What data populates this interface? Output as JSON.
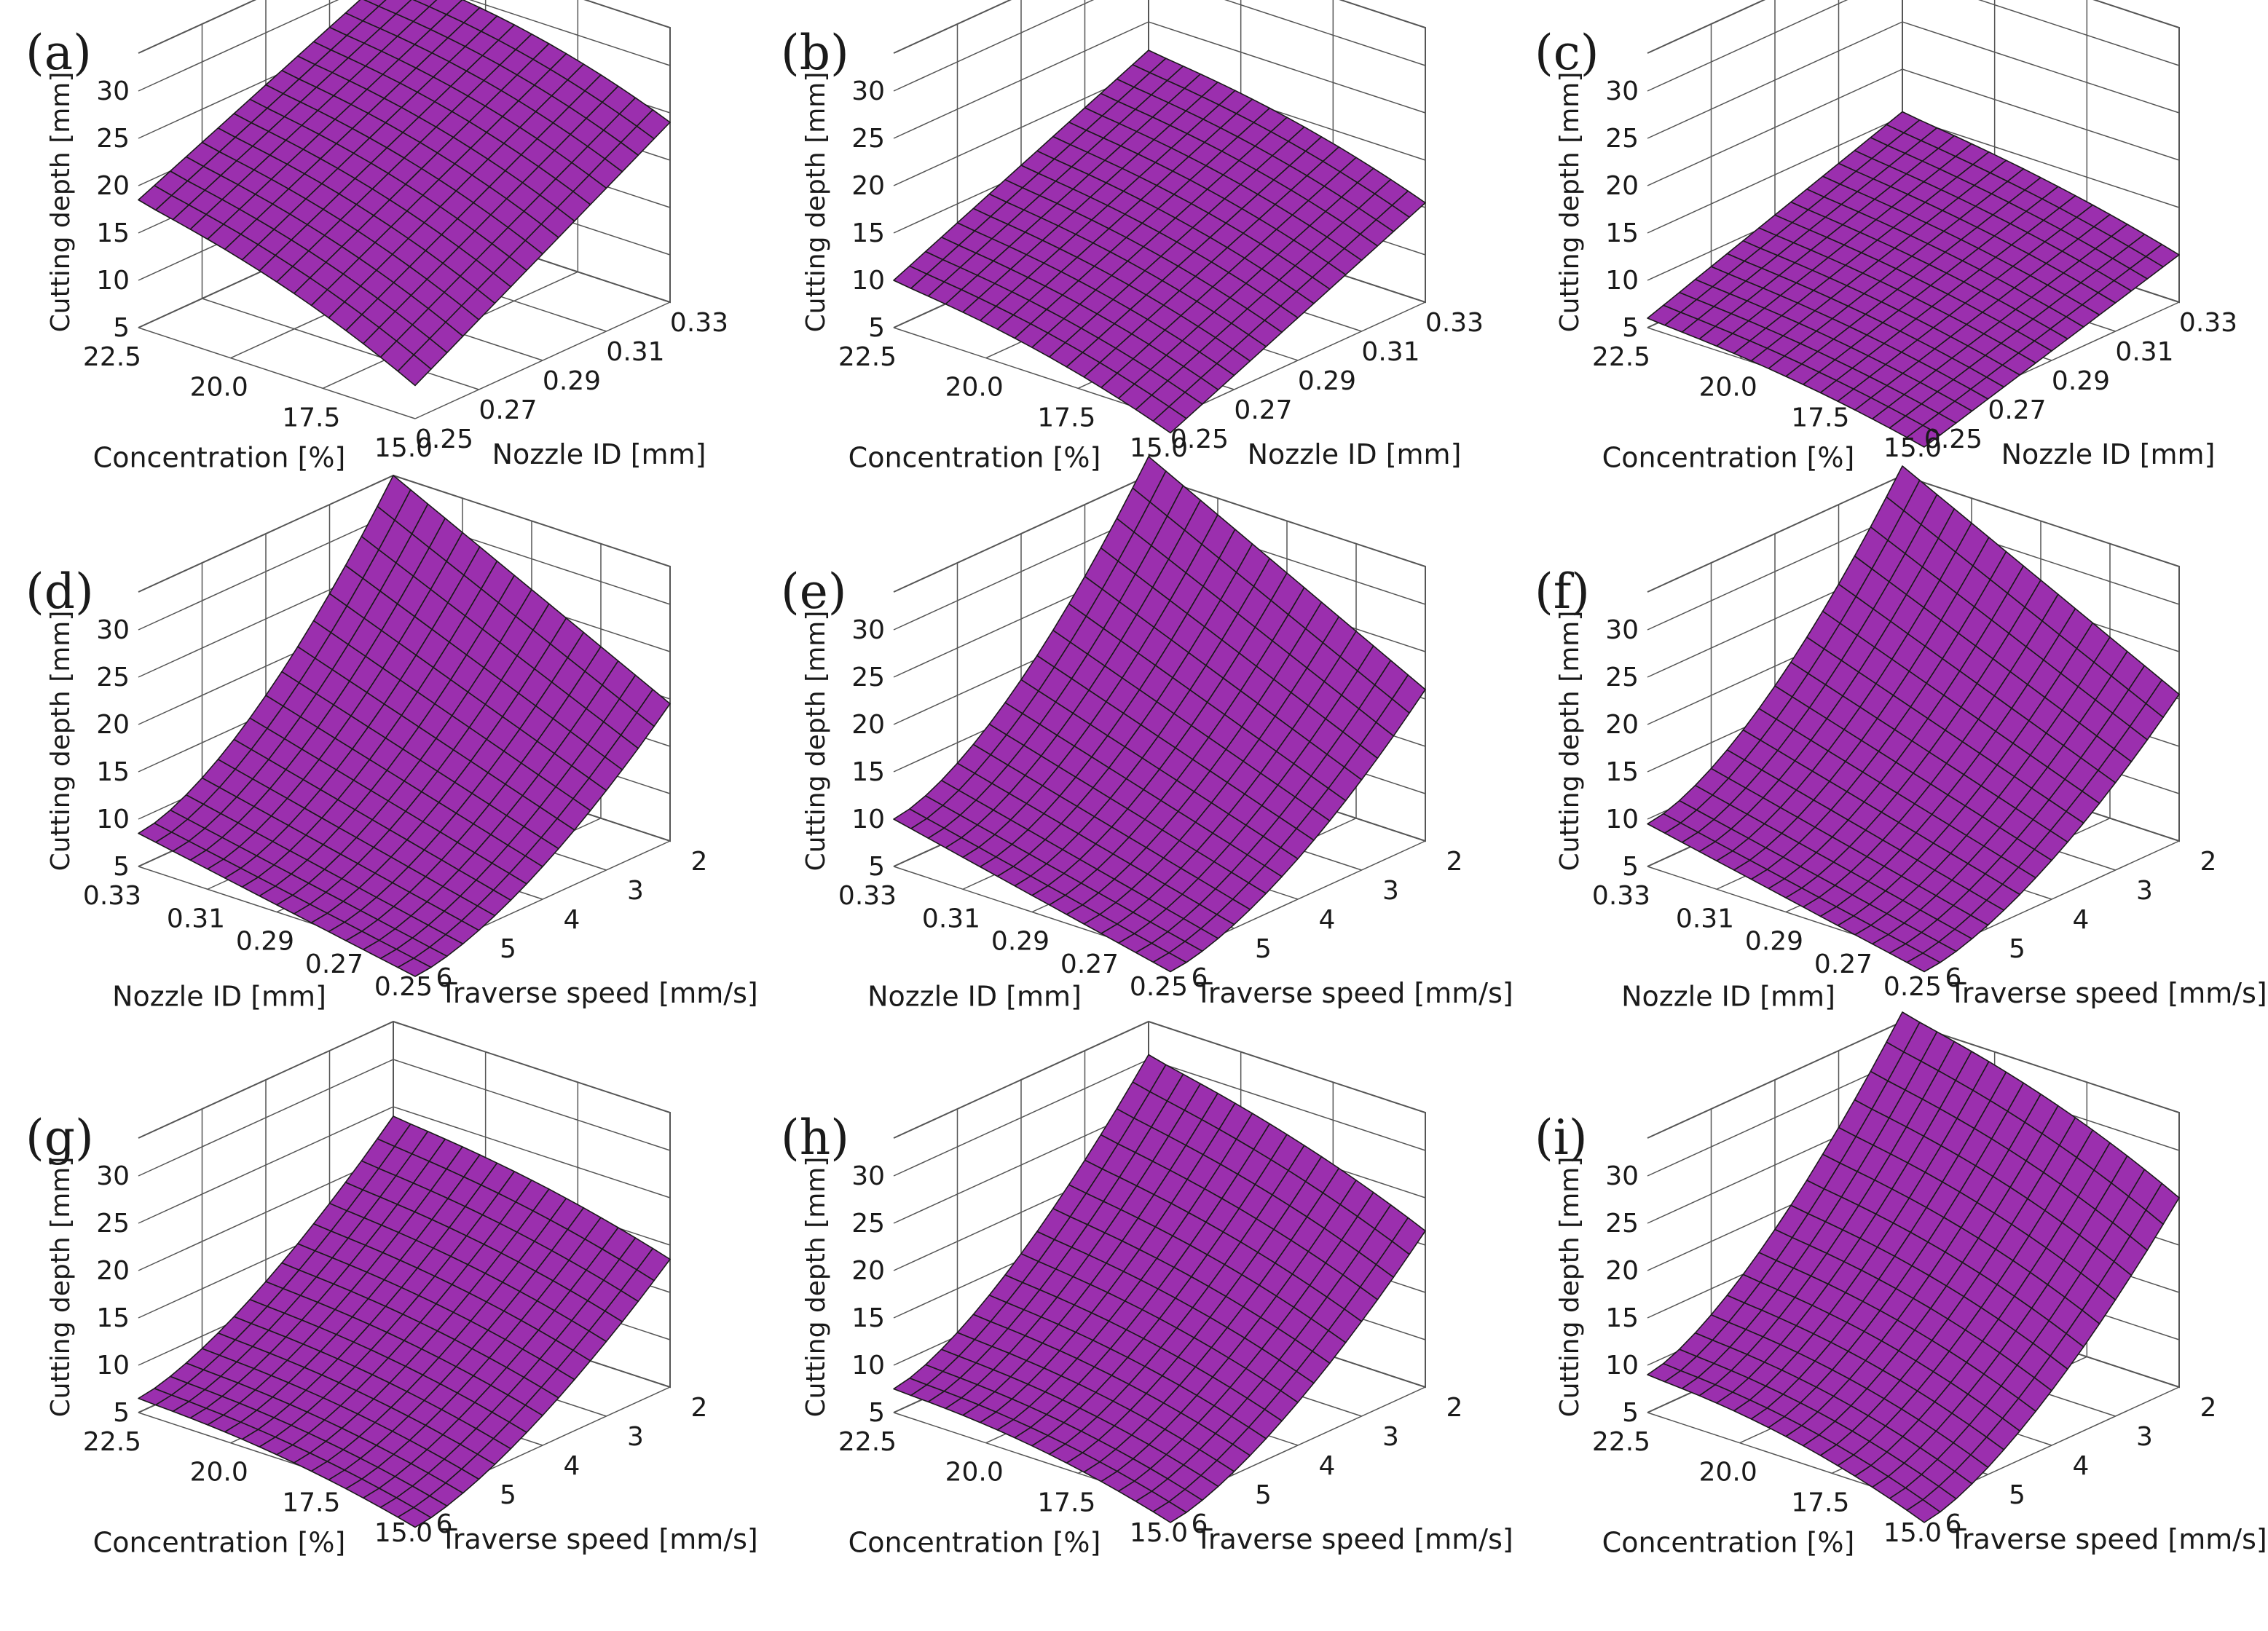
{
  "figure": {
    "surface_color": "#9B2FAE",
    "mesh_color": "#1a1a1a",
    "grid_color": "#555555"
  },
  "chart_data": [
    {
      "panel": "(a)",
      "type": "surface3d",
      "x_label": "Concentration  [%]",
      "x_ticks": [
        "22.5",
        "20.0",
        "17.5",
        "15.0"
      ],
      "x_range": [
        22.5,
        15.0
      ],
      "y_label": "Nozzle ID  [mm]",
      "y_ticks": [
        "0.25",
        "0.27",
        "0.29",
        "0.31",
        "0.33"
      ],
      "y_range": [
        0.25,
        0.33
      ],
      "z_label": "Cutting depth  [mm]",
      "z_ticks": [
        "5",
        "10",
        "15",
        "20",
        "25",
        "30"
      ],
      "z_range": [
        5,
        30
      ],
      "corner_values": {
        "x0y0": 18.5,
        "x1y0": 8.5,
        "x0y1": 30.5,
        "x1y1": 24
      },
      "curvature": 1.5,
      "x_power": 0.9,
      "y_power": 1.0
    },
    {
      "panel": "(b)",
      "type": "surface3d",
      "x_label": "Concentration  [%]",
      "x_ticks": [
        "22.5",
        "20.0",
        "17.5",
        "15.0"
      ],
      "x_range": [
        22.5,
        15.0
      ],
      "y_label": "Nozzle ID  [mm]",
      "y_ticks": [
        "0.25",
        "0.27",
        "0.29",
        "0.31",
        "0.33"
      ],
      "y_range": [
        0.25,
        0.33
      ],
      "z_label": "Cutting depth  [mm]",
      "z_ticks": [
        "5",
        "10",
        "15",
        "20",
        "25",
        "30"
      ],
      "z_range": [
        5,
        30
      ],
      "corner_values": {
        "x0y0": 10,
        "x1y0": 3.5,
        "x0y1": 22,
        "x1y1": 15.5
      },
      "curvature": 1.2,
      "x_power": 0.9,
      "y_power": 1.0
    },
    {
      "panel": "(c)",
      "type": "surface3d",
      "x_label": "Concentration  [%]",
      "x_ticks": [
        "22.5",
        "20.0",
        "17.5",
        "15.0"
      ],
      "x_range": [
        22.5,
        15.0
      ],
      "y_label": "Nozzle ID  [mm]",
      "y_ticks": [
        "0.25",
        "0.27",
        "0.29",
        "0.31",
        "0.33"
      ],
      "y_range": [
        0.25,
        0.33
      ],
      "z_label": "Cutting depth  [mm]",
      "z_ticks": [
        "5",
        "10",
        "15",
        "20",
        "25",
        "30"
      ],
      "z_range": [
        5,
        30
      ],
      "corner_values": {
        "x0y0": 6,
        "x1y0": 2,
        "x0y1": 15.5,
        "x1y1": 10
      },
      "curvature": 0.8,
      "x_power": 0.9,
      "y_power": 1.0
    },
    {
      "panel": "(d)",
      "type": "surface3d",
      "x_label": "Nozzle ID  [mm]",
      "x_ticks": [
        "0.33",
        "0.31",
        "0.29",
        "0.27",
        "0.25"
      ],
      "x_range": [
        0.33,
        0.25
      ],
      "y_label": "Traverse speed  [mm/s]",
      "y_ticks": [
        "6",
        "5",
        "4",
        "3",
        "2"
      ],
      "y_range": [
        6,
        2
      ],
      "z_label": "Cutting depth  [mm]",
      "z_ticks": [
        "5",
        "10",
        "15",
        "20",
        "25",
        "30"
      ],
      "z_range": [
        5,
        30
      ],
      "corner_values": {
        "x0y0": 8.5,
        "x1y0": 3,
        "x0y1": 34,
        "x1y1": 19.5
      },
      "curvature": 0,
      "x_power": 1.0,
      "y_power": 1.6
    },
    {
      "panel": "(e)",
      "type": "surface3d",
      "x_label": "Nozzle ID  [mm]",
      "x_ticks": [
        "0.33",
        "0.31",
        "0.29",
        "0.27",
        "0.25"
      ],
      "x_range": [
        0.33,
        0.25
      ],
      "y_label": "Traverse speed  [mm/s]",
      "y_ticks": [
        "6",
        "5",
        "4",
        "3",
        "2"
      ],
      "y_range": [
        6,
        2
      ],
      "z_label": "Cutting depth  [mm]",
      "z_ticks": [
        "5",
        "10",
        "15",
        "20",
        "25",
        "30"
      ],
      "z_range": [
        5,
        30
      ],
      "corner_values": {
        "x0y0": 10,
        "x1y0": 3.5,
        "x0y1": 36,
        "x1y1": 21
      },
      "curvature": 0,
      "x_power": 1.0,
      "y_power": 1.6
    },
    {
      "panel": "(f)",
      "type": "surface3d",
      "x_label": "Nozzle ID  [mm]",
      "x_ticks": [
        "0.33",
        "0.31",
        "0.29",
        "0.27",
        "0.25"
      ],
      "x_range": [
        0.33,
        0.25
      ],
      "y_label": "Traverse speed  [mm/s]",
      "y_ticks": [
        "6",
        "5",
        "4",
        "3",
        "2"
      ],
      "y_range": [
        6,
        2
      ],
      "z_label": "Cutting depth  [mm]",
      "z_ticks": [
        "5",
        "10",
        "15",
        "20",
        "25",
        "30"
      ],
      "z_range": [
        5,
        30
      ],
      "corner_values": {
        "x0y0": 9.5,
        "x1y0": 3.5,
        "x0y1": 35,
        "x1y1": 20.5
      },
      "curvature": 0,
      "x_power": 1.0,
      "y_power": 1.6
    },
    {
      "panel": "(g)",
      "type": "surface3d",
      "x_label": "Concentration  [%]",
      "x_ticks": [
        "22.5",
        "20.0",
        "17.5",
        "15.0"
      ],
      "x_range": [
        22.5,
        15.0
      ],
      "y_label": "Traverse speed  [mm/s]",
      "y_ticks": [
        "6",
        "5",
        "4",
        "3",
        "2"
      ],
      "y_range": [
        6,
        2
      ],
      "z_label": "Cutting depth  [mm]",
      "z_ticks": [
        "5",
        "10",
        "15",
        "20",
        "25",
        "30"
      ],
      "z_range": [
        5,
        30
      ],
      "corner_values": {
        "x0y0": 6.5,
        "x1y0": 2.5,
        "x0y1": 24,
        "x1y1": 18.5
      },
      "curvature": 1.0,
      "x_power": 0.9,
      "y_power": 1.5
    },
    {
      "panel": "(h)",
      "type": "surface3d",
      "x_label": "Concentration  [%]",
      "x_ticks": [
        "22.5",
        "20.0",
        "17.5",
        "15.0"
      ],
      "x_range": [
        22.5,
        15.0
      ],
      "y_label": "Traverse speed  [mm/s]",
      "y_ticks": [
        "6",
        "5",
        "4",
        "3",
        "2"
      ],
      "y_range": [
        6,
        2
      ],
      "z_label": "Cutting depth  [mm]",
      "z_ticks": [
        "5",
        "10",
        "15",
        "20",
        "25",
        "30"
      ],
      "z_range": [
        5,
        30
      ],
      "corner_values": {
        "x0y0": 7.5,
        "x1y0": 3,
        "x0y1": 30.5,
        "x1y1": 21.5
      },
      "curvature": 1.2,
      "x_power": 0.9,
      "y_power": 1.5
    },
    {
      "panel": "(i)",
      "type": "surface3d",
      "x_label": "Concentration  [%]",
      "x_ticks": [
        "22.5",
        "20.0",
        "17.5",
        "15.0"
      ],
      "x_range": [
        22.5,
        15.0
      ],
      "y_label": "Traverse speed  [mm/s]",
      "y_ticks": [
        "6",
        "5",
        "4",
        "3",
        "2"
      ],
      "y_range": [
        6,
        2
      ],
      "z_label": "Cutting depth  [mm]",
      "z_ticks": [
        "5",
        "10",
        "15",
        "20",
        "25",
        "30"
      ],
      "z_range": [
        5,
        30
      ],
      "corner_values": {
        "x0y0": 9,
        "x1y0": 3,
        "x0y1": 35,
        "x1y1": 25
      },
      "curvature": 1.5,
      "x_power": 0.9,
      "y_power": 1.5
    }
  ]
}
